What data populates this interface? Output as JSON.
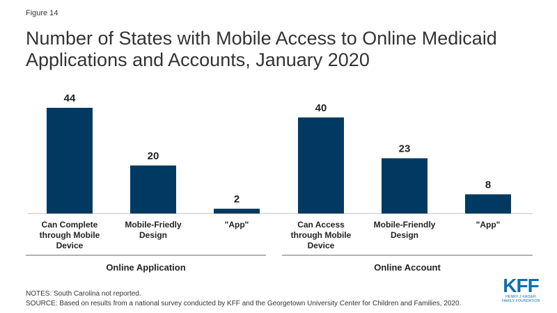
{
  "figure_label": "Figure 14",
  "title": "Number of States with Mobile Access to Online Medicaid Applications and Accounts, January 2020",
  "notes": "NOTES: South Carolina not reported.",
  "source": "SOURCE: Based on results from a national survey conducted by KFF and the Georgetown University Center for Children and Families, 2020.",
  "logo": {
    "main": "KFF",
    "sub_line1": "HENRY J KAISER",
    "sub_line2": "FAMILY FOUNDATION"
  },
  "colors": {
    "bar": "#003a63",
    "logo": "#0c6fb2",
    "axis": "#bfbfbf"
  },
  "chart_data": {
    "type": "bar",
    "title": "Number of States with Mobile Access to Online Medicaid Applications and Accounts, January 2020",
    "xlabel": "",
    "ylabel": "",
    "ylim": [
      0,
      44
    ],
    "grid": false,
    "groups": [
      {
        "name": "Online Application",
        "categories": [
          [
            "Can Complete",
            "through Mobile",
            "Device"
          ],
          [
            "Mobile-Friedly",
            "Design"
          ],
          [
            "\"App\""
          ]
        ],
        "values": [
          44,
          20,
          2
        ]
      },
      {
        "name": "Online Account",
        "categories": [
          [
            "Can Access",
            "through Mobile",
            "Device"
          ],
          [
            "Mobile-Friendly",
            "Design"
          ],
          [
            "\"App\""
          ]
        ],
        "values": [
          40,
          23,
          8
        ]
      }
    ]
  }
}
